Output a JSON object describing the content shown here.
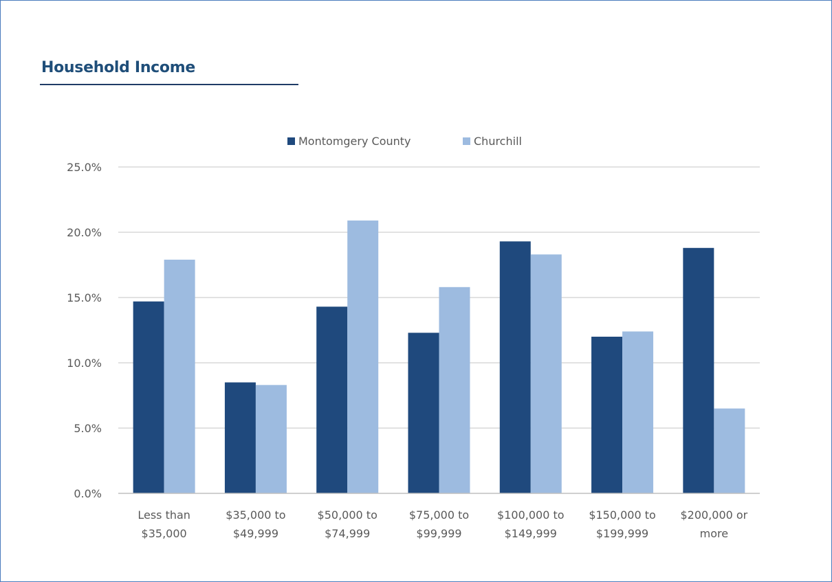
{
  "header": {
    "title": "Household Income"
  },
  "colors": {
    "title": "#1f4e79",
    "rule": "#1f3c66",
    "series1": "#1f497d",
    "series2": "#9dbbe0",
    "grid": "#d9d9d9",
    "axis": "#bfbfbf",
    "text": "#595959",
    "border": "#4a7bbd"
  },
  "chart_data": {
    "type": "bar",
    "title": "",
    "xlabel": "",
    "ylabel": "",
    "categories": [
      [
        "Less than",
        "$35,000"
      ],
      [
        "$35,000 to",
        "$49,999"
      ],
      [
        "$50,000 to",
        "$74,999"
      ],
      [
        "$75,000 to",
        "$99,999"
      ],
      [
        "$100,000 to",
        "$149,999"
      ],
      [
        "$150,000 to",
        "$199,999"
      ],
      [
        "$200,000 or",
        "more"
      ]
    ],
    "series": [
      {
        "name": "Montomgery County",
        "values": [
          14.7,
          8.5,
          14.3,
          12.3,
          19.3,
          12.0,
          18.8
        ]
      },
      {
        "name": "Churchill",
        "values": [
          17.9,
          8.3,
          20.9,
          15.8,
          18.3,
          12.4,
          6.5
        ]
      }
    ],
    "ylim": [
      0,
      25
    ],
    "yticks": [
      0,
      5,
      10,
      15,
      20,
      25
    ],
    "ytick_labels": [
      "0.0%",
      "5.0%",
      "10.0%",
      "15.0%",
      "20.0%",
      "25.0%"
    ],
    "grid": true,
    "legend": "top-center"
  }
}
